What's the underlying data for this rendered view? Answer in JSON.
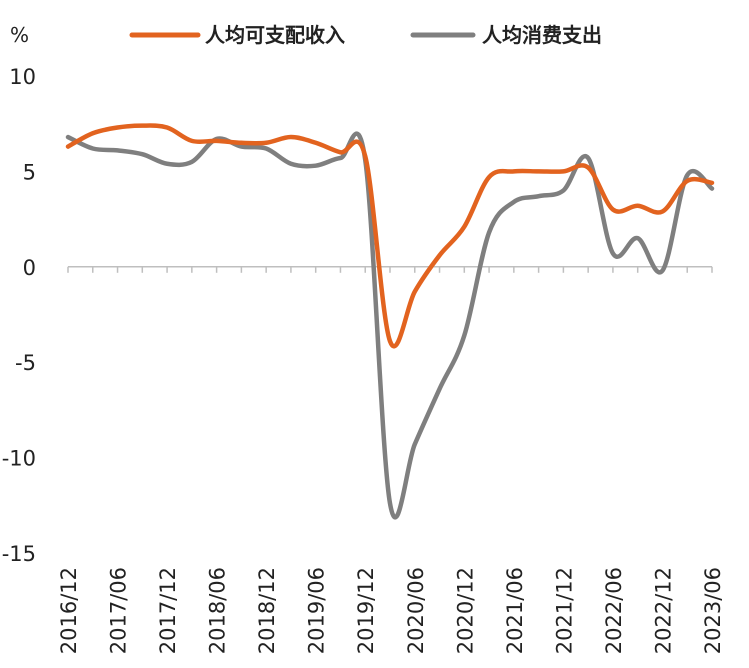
{
  "chart_data": {
    "type": "line",
    "ylabel": "%",
    "ylim": [
      -15,
      10
    ],
    "yticks": [
      10,
      5,
      0,
      -5,
      -10,
      -15
    ],
    "grid": false,
    "legend_position": "top",
    "xtick_labels": [
      "2016/12",
      "2017/06",
      "2017/12",
      "2018/06",
      "2018/12",
      "2019/06",
      "2019/12",
      "2020/06",
      "2020/12",
      "2021/06",
      "2021/12",
      "2022/06",
      "2022/12",
      "2023/06"
    ],
    "x": [
      "2016/12",
      "2017/03",
      "2017/06",
      "2017/09",
      "2017/12",
      "2018/03",
      "2018/06",
      "2018/09",
      "2018/12",
      "2019/03",
      "2019/06",
      "2019/09",
      "2019/12",
      "2020/03",
      "2020/06",
      "2020/09",
      "2020/12",
      "2021/03",
      "2021/06",
      "2021/09",
      "2021/12",
      "2022/03",
      "2022/06",
      "2022/09",
      "2022/12",
      "2023/03",
      "2023/06"
    ],
    "series": [
      {
        "name": "人均可支配收入",
        "color": "#e2631f",
        "values": [
          6.3,
          7.0,
          7.3,
          7.4,
          7.3,
          6.6,
          6.6,
          6.5,
          6.5,
          6.8,
          6.5,
          6.0,
          5.8,
          -3.9,
          -1.3,
          0.6,
          2.1,
          4.7,
          5.0,
          5.0,
          5.0,
          5.2,
          3.0,
          3.2,
          2.9,
          4.5,
          4.4
        ]
      },
      {
        "name": "人均消费支出",
        "color": "#7f7f7f",
        "values": [
          6.8,
          6.2,
          6.1,
          5.9,
          5.4,
          5.5,
          6.7,
          6.3,
          6.2,
          5.4,
          5.3,
          5.7,
          5.6,
          -12.4,
          -9.3,
          -6.4,
          -3.6,
          1.8,
          3.4,
          3.7,
          4.0,
          5.7,
          0.7,
          1.5,
          -0.2,
          4.8,
          4.1
        ]
      }
    ]
  }
}
